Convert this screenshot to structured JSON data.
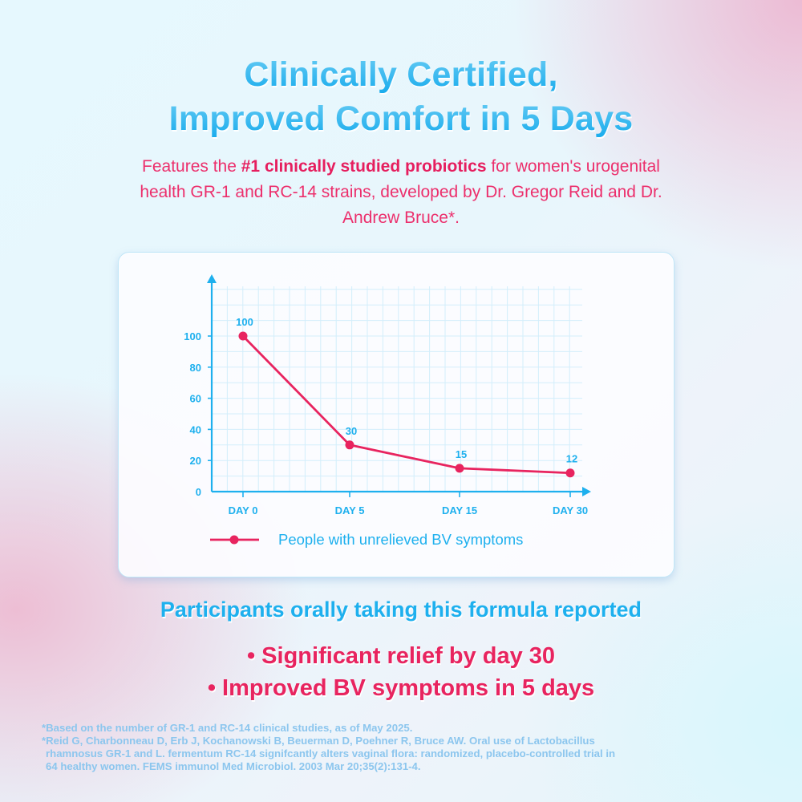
{
  "header": {
    "title_line1": "Clinically Certified,",
    "title_line2": "Improved Comfort in 5 Days"
  },
  "subtitle": {
    "prefix": "Features the ",
    "bold": "#1 clinically studied probiotics",
    "suffix_line1": " for women's urogenital",
    "line2": "health GR-1 and RC-14 strains, developed by Dr. Gregor Reid and Dr.",
    "line3": "Andrew Bruce*."
  },
  "colors": {
    "accent_blue": "#1eb0ee",
    "accent_pink": "#e8245f",
    "grid_blue": "#d3eefb",
    "footnote": "#8cc6ee"
  },
  "chart_data": {
    "type": "line",
    "title": "",
    "xlabel": "",
    "ylabel": "",
    "categories": [
      "DAY 0",
      "DAY 5",
      "DAY 15",
      "DAY 30"
    ],
    "series": [
      {
        "name": "People with unrelieved BV symptoms",
        "values": [
          100,
          30,
          15,
          12
        ],
        "data_labels": [
          "100",
          "30",
          "15",
          "12"
        ],
        "color": "#e8245f"
      }
    ],
    "yticks": [
      0,
      20,
      40,
      60,
      80,
      100
    ],
    "ytick_labels": [
      "0",
      "20",
      "40",
      "60",
      "80",
      "100"
    ],
    "ylim": [
      0,
      100
    ],
    "grid": true,
    "legend": {
      "position": "bottom",
      "label": "People with unrelieved BV symptoms"
    }
  },
  "results": {
    "heading": "Participants orally taking this formula reported",
    "bullets": [
      "• Significant relief by day 30",
      "• Improved BV symptoms in 5 days"
    ]
  },
  "footnotes": [
    "*Based on the number of GR-1 and RC-14 clinical studies, as of May 2025.",
    "*Reid G, Charbonneau D, Erb J, Kochanowski B, Beuerman D, Poehner R, Bruce AW. Oral use of Lactobacillus",
    "rhamnosus GR-1 and L. fermentum RC-14 signifcantly alters vaginal flora: randomized, placebo-controlled trial in",
    "64 healthy women. FEMS immunol Med Microbiol. 2003 Mar 20;35(2):131-4."
  ]
}
